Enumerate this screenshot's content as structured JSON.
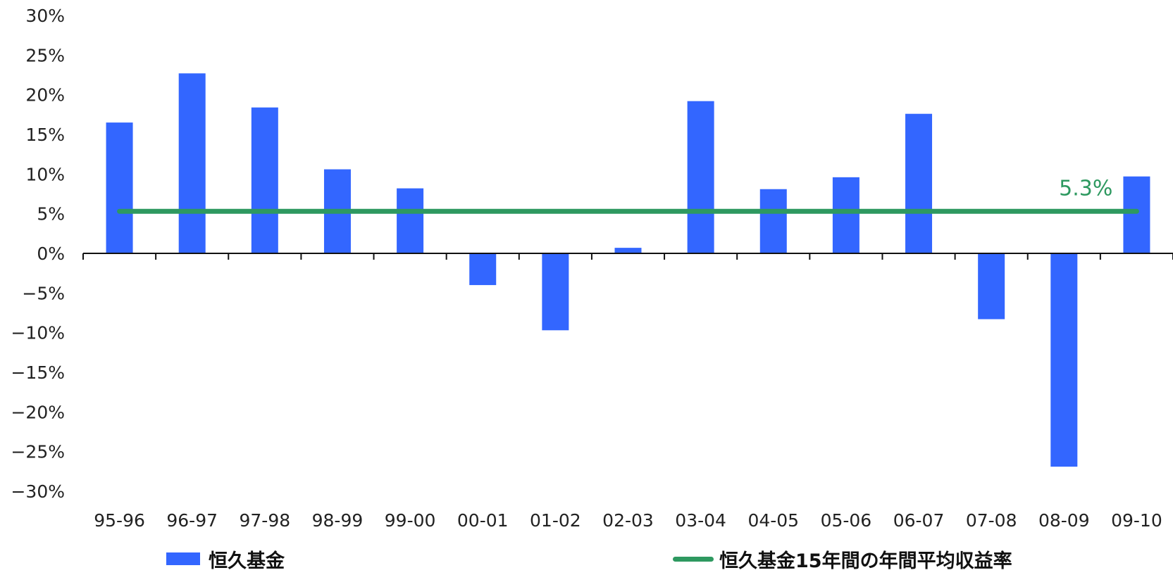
{
  "chart_data": {
    "type": "bar",
    "categories": [
      "95-96",
      "96-97",
      "97-98",
      "98-99",
      "99-00",
      "00-01",
      "01-02",
      "02-03",
      "03-04",
      "04-05",
      "05-06",
      "06-07",
      "07-08",
      "08-09",
      "09-10"
    ],
    "series": [
      {
        "name": "恒久基金",
        "type": "bar",
        "color": "#3366ff",
        "values": [
          16.5,
          22.7,
          18.4,
          10.6,
          8.2,
          -4.0,
          -9.7,
          0.7,
          19.2,
          8.1,
          9.6,
          17.6,
          -8.3,
          -26.9,
          9.7
        ]
      },
      {
        "name": "恒久基金15年間の年間平均収益率",
        "type": "line",
        "color": "#2e9960",
        "values": [
          5.3,
          5.3,
          5.3,
          5.3,
          5.3,
          5.3,
          5.3,
          5.3,
          5.3,
          5.3,
          5.3,
          5.3,
          5.3,
          5.3,
          5.3
        ]
      }
    ],
    "ylim": [
      -30,
      30
    ],
    "yticks": [
      30,
      25,
      20,
      15,
      10,
      5,
      0,
      -5,
      -10,
      -15,
      -20,
      -25,
      -30
    ],
    "ytick_labels": [
      "30%",
      "25%",
      "20%",
      "15%",
      "10%",
      "5%",
      "0%",
      "−5%",
      "−10%",
      "−15%",
      "−20%",
      "−25%",
      "−30%"
    ],
    "annotation": {
      "text": "5.3%",
      "color": "#2e9960"
    },
    "grid": false,
    "legend": "bottom"
  }
}
